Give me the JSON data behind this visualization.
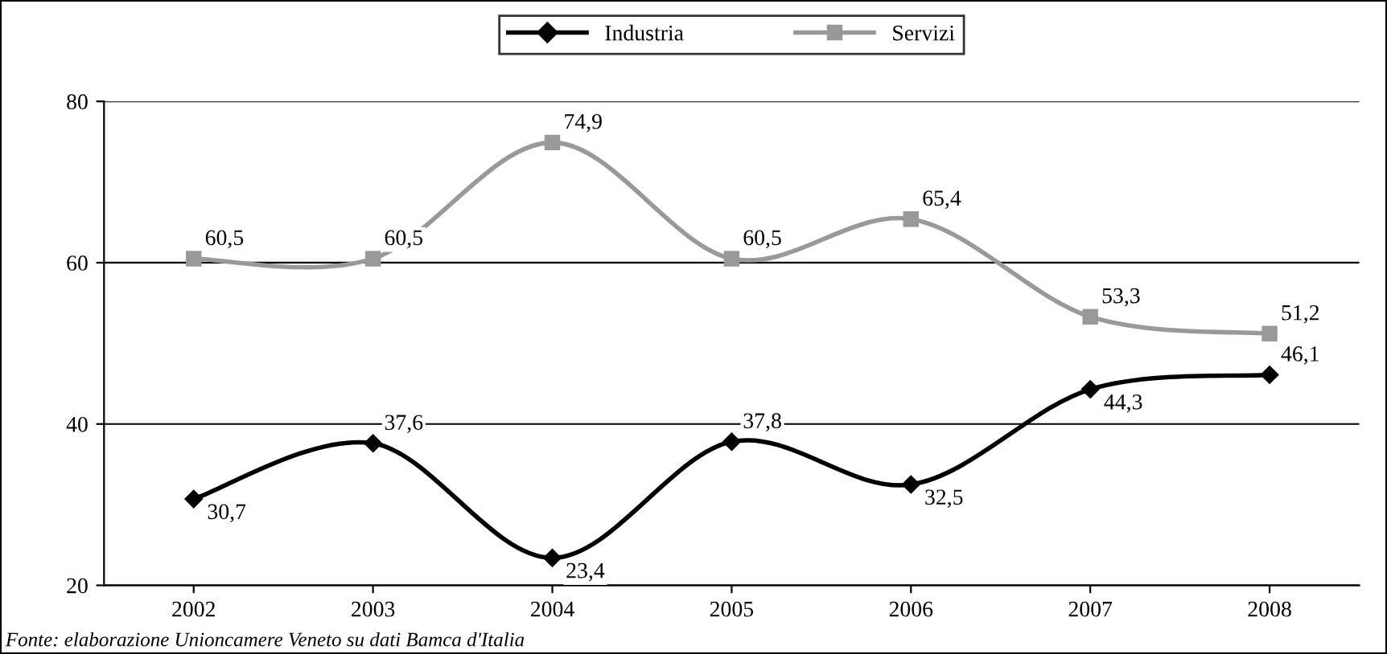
{
  "chart_data": {
    "type": "line",
    "categories": [
      "2002",
      "2003",
      "2004",
      "2005",
      "2006",
      "2007",
      "2008"
    ],
    "series": [
      {
        "name": "Industria",
        "color": "#000000",
        "marker": "diamond",
        "values": [
          30.7,
          37.6,
          23.4,
          37.8,
          32.5,
          44.3,
          46.1
        ],
        "value_labels": [
          "30,7",
          "37,6",
          "23,4",
          "37,8",
          "32,5",
          "44,3",
          "46,1"
        ]
      },
      {
        "name": "Servizi",
        "color": "#999999",
        "marker": "square",
        "values": [
          60.5,
          60.5,
          74.9,
          60.5,
          65.4,
          53.3,
          51.2
        ],
        "value_labels": [
          "60,5",
          "60,5",
          "74,9",
          "60,5",
          "65,4",
          "53,3",
          "51,2"
        ]
      }
    ],
    "ylim": [
      20,
      80
    ],
    "yticks": [
      20,
      40,
      60,
      80
    ],
    "grid": "y",
    "legend": "top",
    "data_labels": true,
    "line_style": "solid",
    "annotations": [
      "Fonte: elaborazione Unioncamere Veneto su dati Bamca d'Italia"
    ]
  }
}
